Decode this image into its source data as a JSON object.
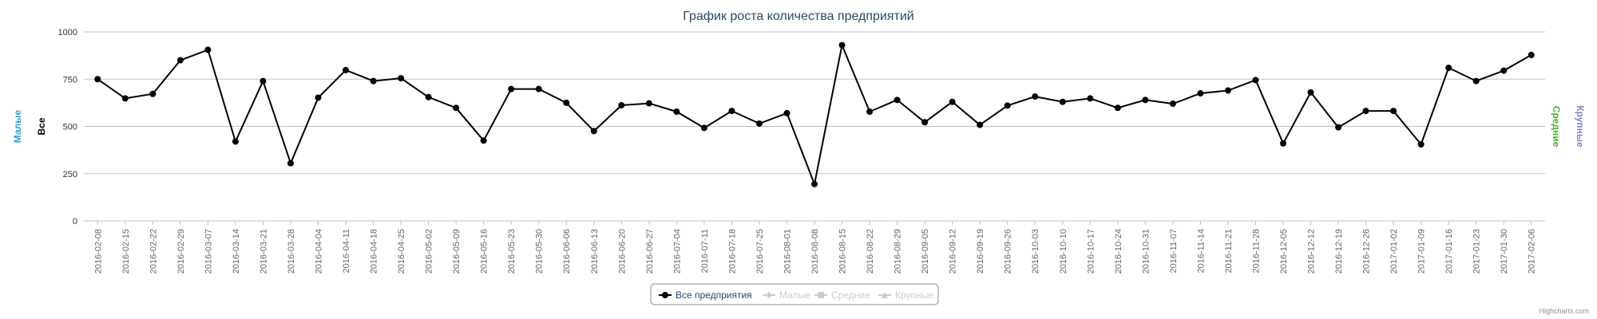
{
  "credits": "Highcharts.com",
  "colors": {
    "all": "#000000",
    "small": "#2f9fd8",
    "medium": "#4caf28",
    "large": "#8085c8",
    "grid": "#c0c0c0",
    "title": "#274b6d",
    "legend_hidden": "#cccccc",
    "legend_border": "#909090"
  },
  "legend": {
    "placement": "bottom-center",
    "items": [
      {
        "label": "Все предприятия",
        "symbol": "circle",
        "active": true
      },
      {
        "label": "Малые",
        "symbol": "diamond",
        "active": false
      },
      {
        "label": "Средние",
        "symbol": "square",
        "active": false
      },
      {
        "label": "Крупные",
        "symbol": "triangle",
        "active": false
      }
    ]
  },
  "chart_data": {
    "type": "line",
    "title": "График роста количества предприятий",
    "y_axes": {
      "left_titles": [
        "Малые",
        "Все"
      ],
      "right_titles": [
        "Средние",
        "Крупные"
      ]
    },
    "ylim": [
      0,
      1000
    ],
    "yticks": [
      0,
      250,
      500,
      750,
      1000
    ],
    "grid": true,
    "categories": [
      "2016-02-08",
      "2016-02-15",
      "2016-02-22",
      "2016-02-29",
      "2016-03-07",
      "2016-03-14",
      "2016-03-21",
      "2016-03-28",
      "2016-04-04",
      "2016-04-11",
      "2016-04-18",
      "2016-04-25",
      "2016-05-02",
      "2016-05-09",
      "2016-05-16",
      "2016-05-23",
      "2016-05-30",
      "2016-06-06",
      "2016-06-13",
      "2016-06-20",
      "2016-06-27",
      "2016-07-04",
      "2016-07-11",
      "2016-07-18",
      "2016-07-25",
      "2016-08-01",
      "2016-08-08",
      "2016-08-15",
      "2016-08-22",
      "2016-08-29",
      "2016-09-05",
      "2016-09-12",
      "2016-09-19",
      "2016-09-26",
      "2016-10-03",
      "2016-10-10",
      "2016-10-17",
      "2016-10-24",
      "2016-10-31",
      "2016-11-07",
      "2016-11-14",
      "2016-11-21",
      "2016-11-28",
      "2016-12-05",
      "2016-12-12",
      "2016-12-19",
      "2016-12-26",
      "2017-01-02",
      "2017-01-09",
      "2017-01-16",
      "2017-01-23",
      "2017-01-30",
      "2017-02-06"
    ],
    "series": [
      {
        "name": "Все предприятия",
        "values": [
          750,
          648,
          672,
          850,
          905,
          420,
          740,
          305,
          652,
          798,
          740,
          755,
          655,
          598,
          425,
          698,
          698,
          625,
          475,
          612,
          622,
          578,
          492,
          582,
          515,
          570,
          195,
          930,
          578,
          640,
          522,
          630,
          508,
          610,
          658,
          630,
          648,
          598,
          640,
          620,
          675,
          690,
          745,
          410,
          680,
          495,
          582,
          582,
          405,
          810,
          740,
          795,
          878
        ]
      }
    ]
  }
}
